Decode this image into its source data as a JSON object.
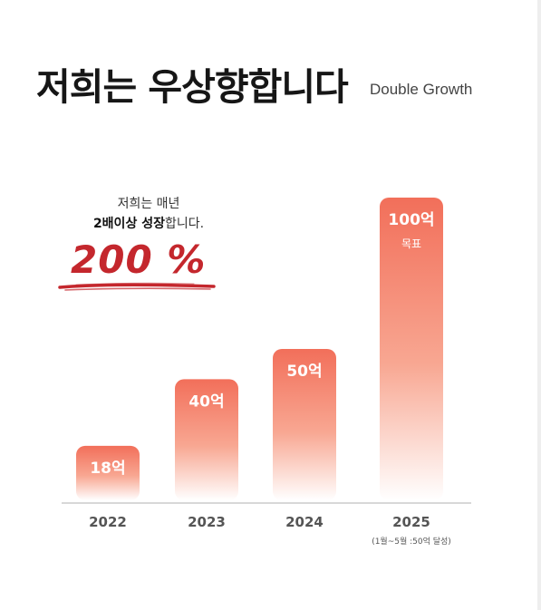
{
  "header": {
    "title": "저희는 우상향합니다",
    "subtitle": "Double Growth"
  },
  "note": {
    "line1": "저희는 매년",
    "line2_bold": "2배이상 성장",
    "line2_rest": "합니다.",
    "percent_number": "200",
    "percent_sign": "%"
  },
  "colors": {
    "bar_top": "#f26f5a",
    "bar_bottom": "#ffffff",
    "accent": "#c4272d",
    "axis": "#cccccc"
  },
  "chart_data": {
    "type": "bar",
    "categories": [
      "2022",
      "2023",
      "2024",
      "2025"
    ],
    "values": [
      18,
      40,
      50,
      100
    ],
    "value_labels": [
      "18억",
      "40억",
      "50억",
      "100억"
    ],
    "bar_sublabels": [
      "",
      "",
      "",
      "목표"
    ],
    "category_notes": [
      "",
      "",
      "",
      "(1월~5월 :50억 달성)"
    ],
    "unit": "억",
    "ylim": [
      0,
      100
    ],
    "grid": false
  }
}
